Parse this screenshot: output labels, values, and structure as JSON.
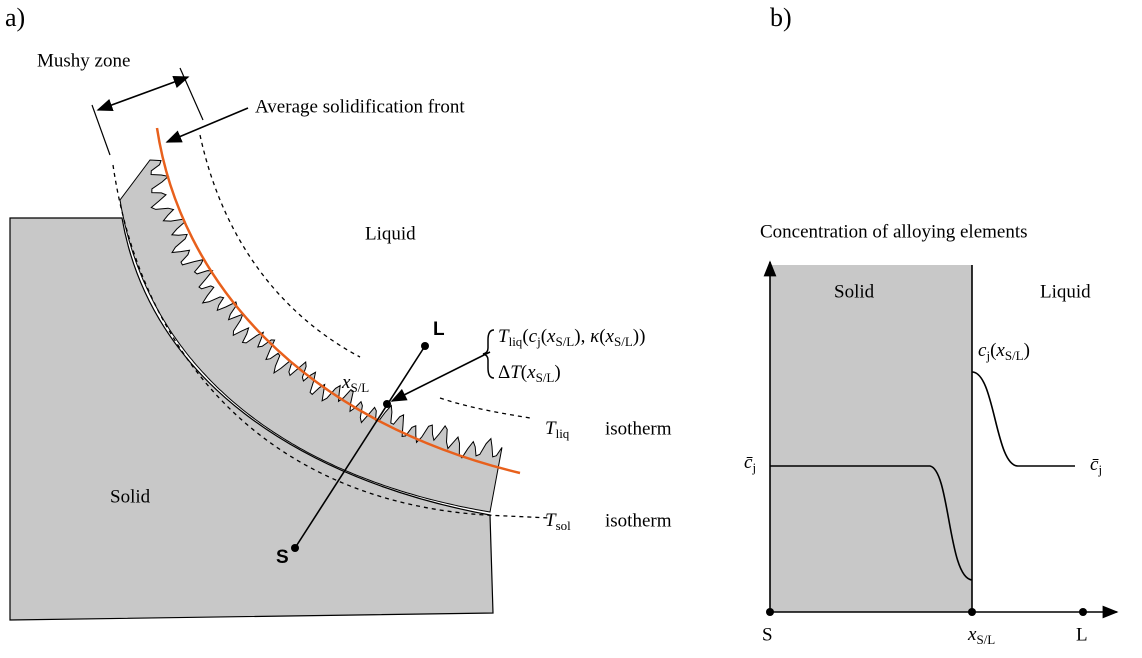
{
  "panel_a": {
    "label": "a)",
    "mushy_zone": "Mushy zone",
    "front": "Average solidification front",
    "liquid": "Liquid",
    "solid": "Solid",
    "L": "L",
    "S": "S",
    "interface": [
      {
        "base": "x",
        "sub": "S/L"
      }
    ],
    "brace_top": [
      {
        "base": "T",
        "sub": "liq"
      },
      "(",
      {
        "base": "c",
        "sub": "j"
      },
      "(",
      {
        "base": "x",
        "sub": "S/L"
      },
      "), ",
      {
        "base": "κ"
      },
      "(",
      {
        "base": "x",
        "sub": "S/L"
      },
      "))"
    ],
    "brace_bottom": [
      "Δ",
      {
        "base": "T"
      },
      "(",
      {
        "base": "x",
        "sub": "S/L"
      },
      ")"
    ],
    "t_liq": [
      {
        "base": "T",
        "sub": "liq"
      }
    ],
    "t_liq_word": "isotherm",
    "t_sol": [
      {
        "base": "T",
        "sub": "sol"
      }
    ],
    "t_sol_word": "isotherm"
  },
  "panel_b": {
    "label": "b)",
    "title": "Concentration of alloying elements",
    "solid": "Solid",
    "liquid": "Liquid",
    "c_interface": [
      {
        "base": "c",
        "sub": "j"
      },
      "(",
      {
        "base": "x",
        "sub": "S/L"
      },
      ")"
    ],
    "c_bar_left": [
      {
        "base": "c̄",
        "sub": "j"
      }
    ],
    "c_bar_right": [
      {
        "base": "c̄",
        "sub": "j"
      }
    ],
    "S": "S",
    "x_label": [
      {
        "base": "x",
        "sub": "S/L"
      }
    ],
    "L": "L"
  }
}
